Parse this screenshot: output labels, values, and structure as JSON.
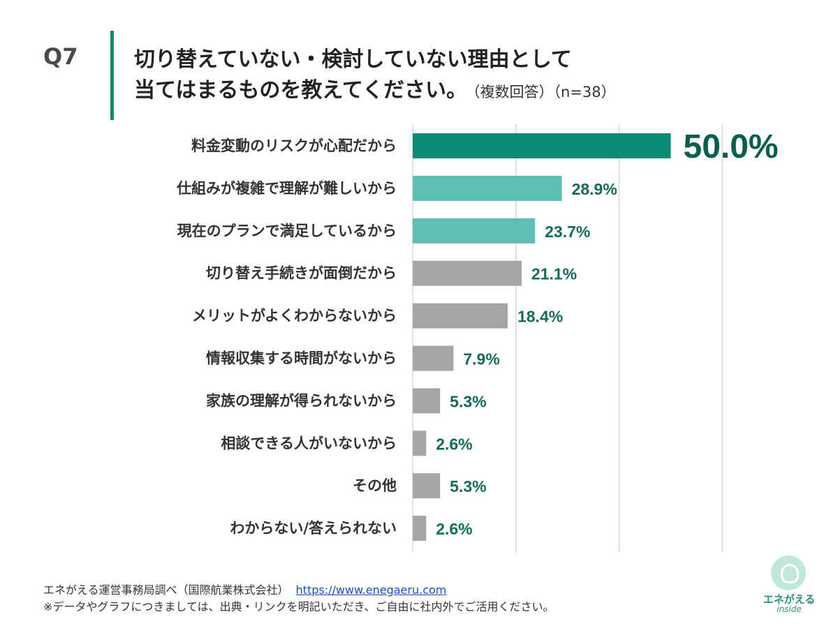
{
  "question": {
    "number": "Q7",
    "title_line1": "切り替えていない・検討していない理由として",
    "title_line2": "当てはまるものを教えてください。",
    "note": "（複数回答）（n=38）"
  },
  "chart_data": {
    "type": "bar",
    "orientation": "horizontal",
    "categories": [
      "料金変動のリスクが心配だから",
      "仕組みが複雑で理解が難しいから",
      "現在のプランで満足しているから",
      "切り替え手続きが面倒だから",
      "メリットがよくわからないから",
      "情報収集する時間がないから",
      "家族の理解が得られないから",
      "相談できる人がいないから",
      "その他",
      "わからない/答えられない"
    ],
    "values": [
      50.0,
      28.9,
      23.7,
      21.1,
      18.4,
      7.9,
      5.3,
      2.6,
      5.3,
      2.6
    ],
    "value_labels": [
      "50.0%",
      "28.9%",
      "23.7%",
      "21.1%",
      "18.4%",
      "7.9%",
      "5.3%",
      "2.6%",
      "5.3%",
      "2.6%"
    ],
    "bar_colors": [
      "#0a8a72",
      "#5dbfb3",
      "#5dbfb3",
      "#a6a4a7",
      "#a6a4a7",
      "#a6a4a7",
      "#a6a4a7",
      "#a6a4a7",
      "#a6a4a7",
      "#a6a4a7"
    ],
    "label_color": "#146b57",
    "xlim": [
      0,
      60
    ],
    "grid": true
  },
  "footer": {
    "source": "エネがえる運営事務局調べ（国際航業株式会社）",
    "url": "https://www.enegaeru.com",
    "note": "※データやグラフにつきましては、出典・リンクを明記いただき、ご自由に社内外でご活用ください。"
  },
  "logo": {
    "name": "エネがえる",
    "sub": "inside"
  }
}
